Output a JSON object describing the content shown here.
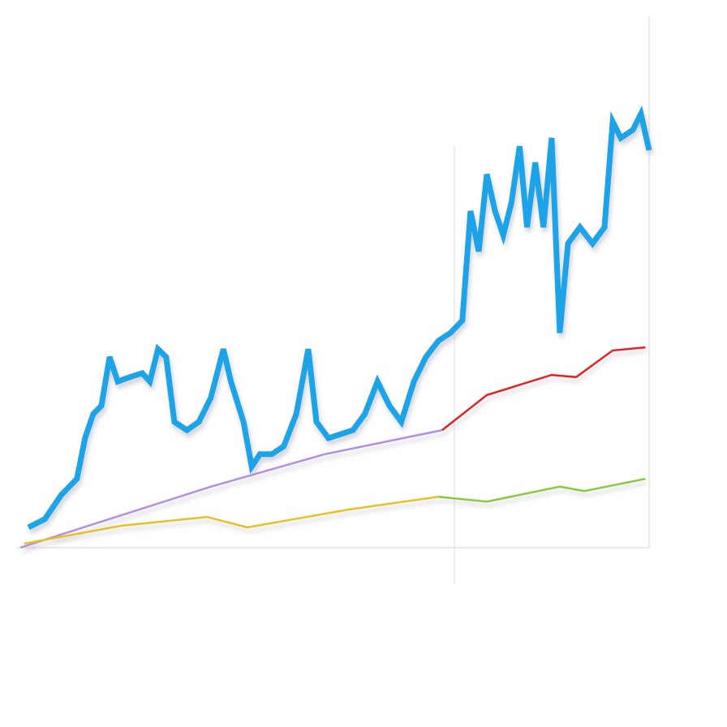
{
  "chart_data": {
    "type": "line",
    "xlim": [
      0,
      100
    ],
    "ylim": [
      0,
      100
    ],
    "series": [
      {
        "color": "#1aa3e8",
        "x": [
          1.3,
          3.9,
          6.5,
          9.0,
          10.3,
          11.6,
          12.9,
          14.2,
          15.5,
          17.4,
          19.4,
          20.6,
          21.9,
          23.2,
          24.5,
          26.5,
          28.4,
          30.3,
          32.3,
          33.5,
          35.5,
          36.8,
          38.1,
          40.0,
          41.9,
          43.9,
          45.8,
          47.1,
          49.0,
          51.0,
          52.9,
          54.8,
          56.8,
          58.7,
          60.6,
          62.6,
          64.5,
          66.5,
          68.4,
          70.3,
          71.6,
          72.9,
          74.2,
          75.5,
          76.8,
          78.1,
          79.4,
          80.6,
          81.9,
          83.2,
          84.5,
          85.8,
          87.1,
          89.0,
          91.0,
          92.9,
          94.2,
          95.5,
          97.4,
          98.7,
          100
        ],
        "values": [
          3.7,
          5.6,
          11.1,
          14.8,
          24.1,
          29.6,
          31.5,
          42.6,
          37.0,
          38.0,
          38.9,
          37.0,
          44.4,
          42.6,
          27.8,
          25.9,
          27.8,
          33.3,
          44.4,
          37.0,
          27.8,
          17.6,
          20.4,
          20.4,
          22.2,
          29.6,
          44.4,
          27.8,
          24.1,
          25.0,
          25.9,
          29.6,
          37.0,
          31.5,
          27.8,
          37.0,
          42.6,
          46.3,
          48.1,
          50.9,
          75.9,
          66.7,
          84.3,
          75.9,
          70.4,
          77.8,
          90.7,
          72.2,
          87.0,
          72.2,
          92.6,
          48.1,
          68.5,
          72.2,
          68.5,
          72.2,
          96.3,
          92.6,
          94.4,
          98.1,
          89.8
        ]
      },
      {
        "color": "#b48ee0",
        "x": [
          0,
          16.1,
          30.3,
          48.4,
          67.1
        ],
        "values": [
          -0.9,
          6.5,
          13.0,
          20.4,
          25.9
        ]
      },
      {
        "color": "#e02020",
        "x": [
          67.1,
          74.2,
          84.5,
          88.4,
          94.2,
          99.4
        ],
        "values": [
          25.9,
          33.9,
          38.5,
          38.0,
          44.1,
          44.8
        ]
      },
      {
        "color": "#e8c020",
        "x": [
          0.6,
          9.7,
          16.1,
          29.7,
          36.1,
          52.3,
          66.5
        ],
        "values": [
          0,
          2.4,
          4.1,
          6.1,
          3.7,
          7.8,
          10.7
        ]
      },
      {
        "color": "#8cc83c",
        "x": [
          66.5,
          74.2,
          85.8,
          89.7,
          99.4
        ],
        "values": [
          10.7,
          9.6,
          13.0,
          12.0,
          14.8
        ]
      }
    ]
  }
}
